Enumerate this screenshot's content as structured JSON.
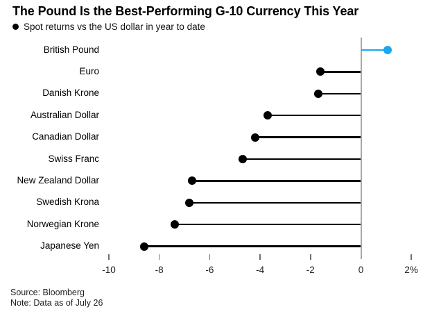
{
  "chart_data": {
    "type": "bar",
    "style": "horizontal-lollipop",
    "title": "The Pound Is the Best-Performing G-10 Currency This Year",
    "subtitle": "Spot returns vs the US dollar in year to date",
    "categories": [
      "British Pound",
      "Euro",
      "Danish Krone",
      "Australian Dollar",
      "Canadian Dollar",
      "Swiss Franc",
      "New Zealand Dollar",
      "Swedish Krona",
      "Norwegian Krone",
      "Japanese Yen"
    ],
    "values": [
      1.05,
      -1.6,
      -1.7,
      -3.7,
      -4.2,
      -4.7,
      -6.7,
      -6.8,
      -7.4,
      -8.6
    ],
    "unit": "%",
    "baseline": 0,
    "grid": false,
    "legend_position": "none",
    "xlabel": "",
    "ylabel": "",
    "xlim": [
      -10.3,
      2.6
    ],
    "xticks": [
      {
        "value": -10,
        "label": "-10"
      },
      {
        "value": -8,
        "label": "-8"
      },
      {
        "value": -6,
        "label": "-6"
      },
      {
        "value": -4,
        "label": "-4"
      },
      {
        "value": -2,
        "label": "-2"
      },
      {
        "value": 0,
        "label": "0"
      },
      {
        "value": 2,
        "label": "2%"
      }
    ],
    "highlight_category": "British Pound"
  },
  "colors": {
    "accent_blue": "#18a7f0",
    "series_black": "#000000",
    "zero_line_gray": "#a8a8a8",
    "tick_gray": "#6f6f6f"
  },
  "footer": {
    "source": "Source: Bloomberg",
    "note": "Note: Data as of July 26"
  }
}
